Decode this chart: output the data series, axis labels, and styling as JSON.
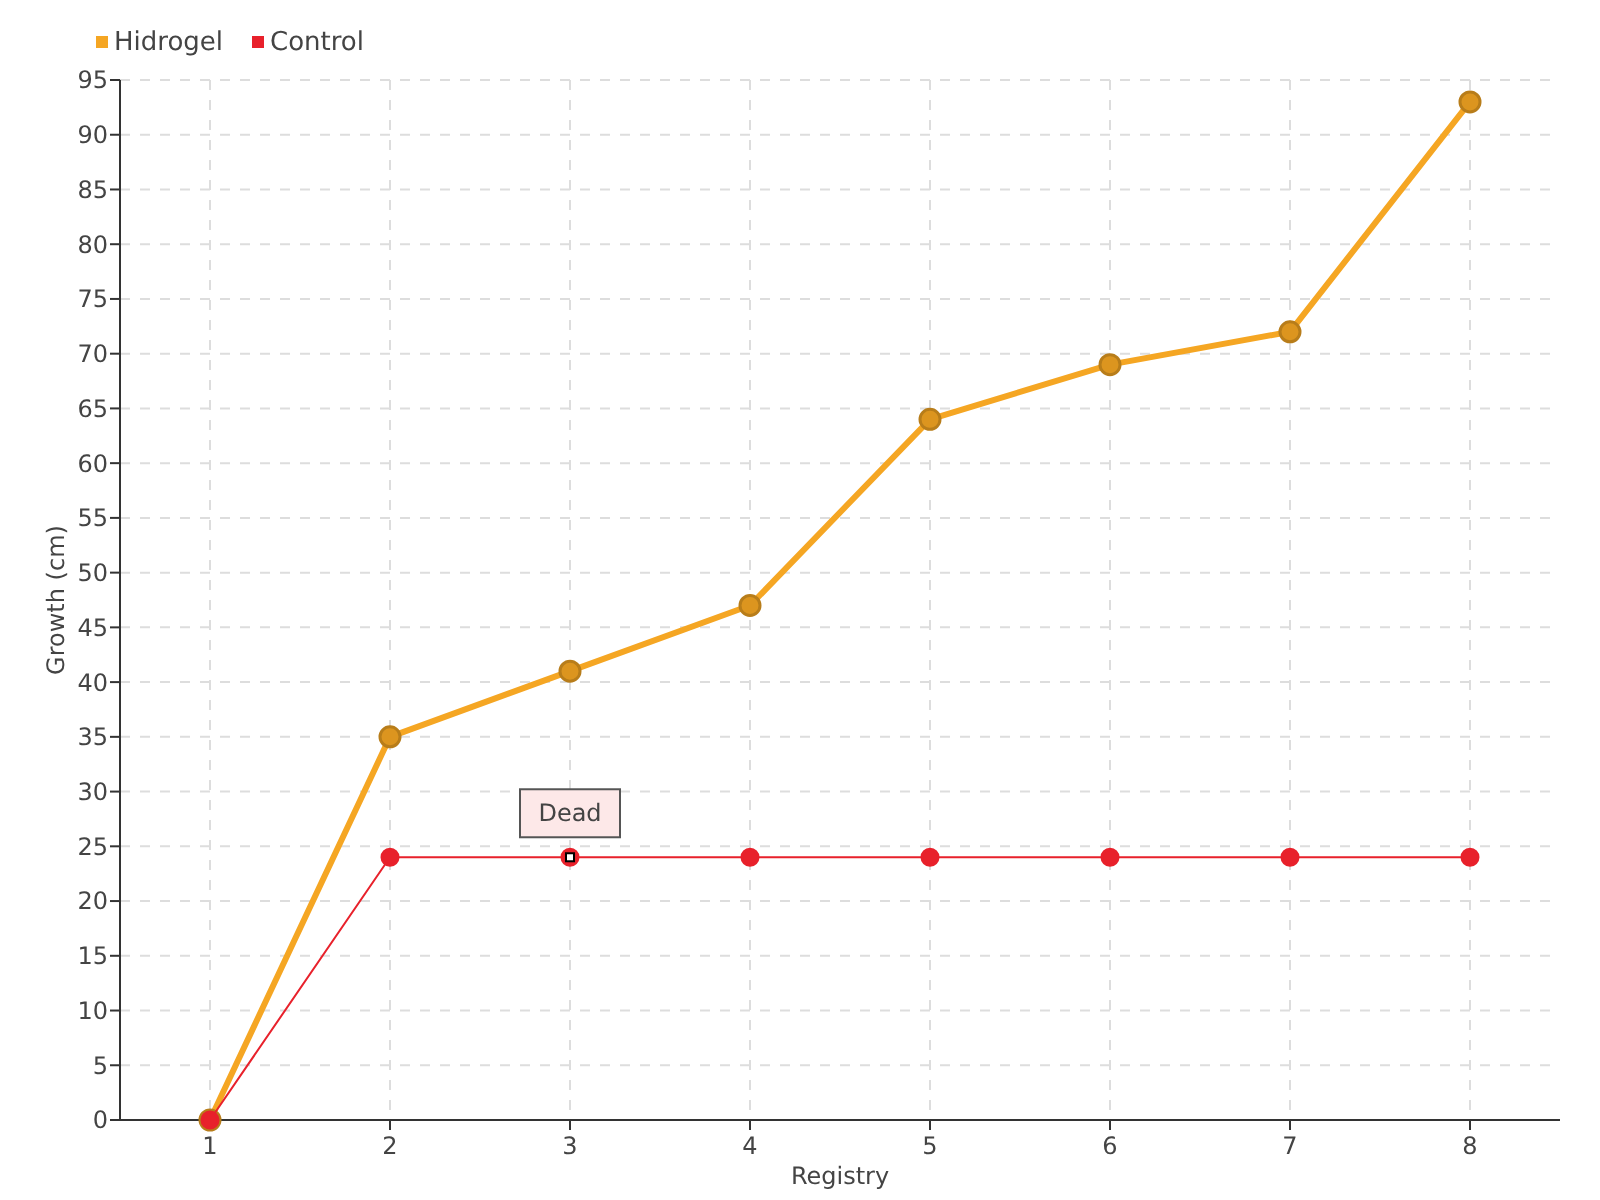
{
  "chart_data": {
    "type": "line",
    "xlabel": "Registry",
    "ylabel": "Growth (cm)",
    "categories": [
      "1",
      "2",
      "3",
      "4",
      "5",
      "6",
      "7",
      "8"
    ],
    "series": [
      {
        "name": "Hidrogel",
        "color": "#f5a623",
        "values": [
          0,
          35,
          41,
          47,
          64,
          69,
          72,
          93
        ]
      },
      {
        "name": "Control",
        "color": "#e8212b",
        "values": [
          0,
          24,
          24,
          24,
          24,
          24,
          24,
          24
        ]
      }
    ],
    "ylim": [
      0,
      95
    ],
    "yticks": [
      0,
      5,
      10,
      15,
      20,
      25,
      30,
      35,
      40,
      45,
      50,
      55,
      60,
      65,
      70,
      75,
      80,
      85,
      90,
      95
    ],
    "grid": true,
    "legend": "top left",
    "marker": "circle",
    "annotations": [
      {
        "text": "Dead",
        "x": "3",
        "y": 24
      }
    ]
  }
}
